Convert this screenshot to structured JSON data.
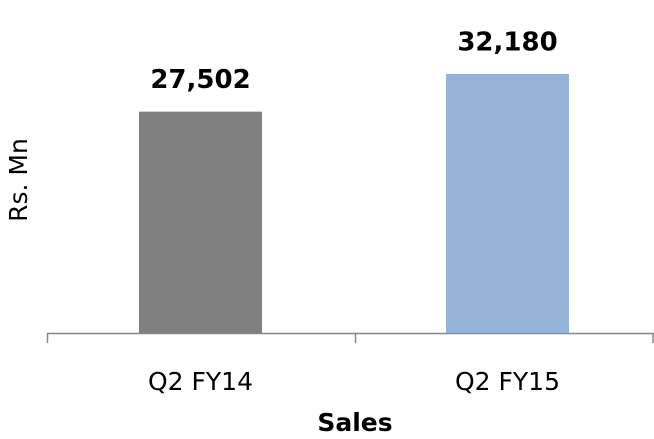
{
  "chart_data": {
    "type": "bar",
    "categories": [
      "Q2 FY14",
      "Q2 FY15"
    ],
    "values": [
      27502,
      32180
    ],
    "value_labels": [
      "27,502",
      "32,180"
    ],
    "colors": [
      "#808080",
      "#95b3d7"
    ],
    "xlabel": "Sales",
    "ylabel": "Rs. Mn"
  }
}
